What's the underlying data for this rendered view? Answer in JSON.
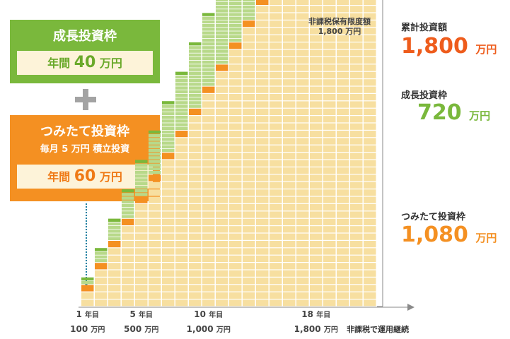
{
  "growth_box": {
    "title": "成長投資枠",
    "annual_prefix": "年間",
    "annual_value": "40",
    "annual_unit": "万円"
  },
  "tsumitate_box": {
    "title": "つみたて投資枠",
    "monthly": "毎月 5 万円 積立投資",
    "annual_prefix": "年間",
    "annual_value": "60",
    "annual_unit": "万円"
  },
  "limit_label": {
    "line1": "非課税保有限度額",
    "line2": "1,800 万円"
  },
  "axis_ticks": [
    {
      "year": "1",
      "year_unit": "年目",
      "amount": "100",
      "amount_unit": "万円",
      "index": 1
    },
    {
      "year": "5",
      "year_unit": "年目",
      "amount": "500",
      "amount_unit": "万円",
      "index": 5
    },
    {
      "year": "10",
      "year_unit": "年目",
      "amount": "1,000",
      "amount_unit": "万円",
      "index": 10
    },
    {
      "year": "18",
      "year_unit": "年目",
      "amount": "1,800",
      "amount_unit": "万円",
      "index": 18
    }
  ],
  "axis_note": "非課税で運用継続",
  "right_labels": {
    "total_label": "累計投資額",
    "total_value": "1,800",
    "total_unit": "万円",
    "growth_label": "成長投資枠",
    "growth_value": "720",
    "growth_unit": "万円",
    "tsumi_label": "つみたて投資枠",
    "tsumi_value": "1,080",
    "tsumi_unit": "万円"
  },
  "colors": {
    "growth_top": "#7ab83c",
    "growth_cell": "#b8d98a",
    "tsumi_top": "#f49022",
    "tsumi_cell": "#f7dfa0",
    "bracket": "#8a8a8a"
  },
  "chart_data": {
    "type": "bar",
    "stacked": true,
    "x": [
      1,
      2,
      3,
      4,
      5,
      6,
      7,
      8,
      9,
      10,
      11,
      12,
      13,
      14,
      15,
      16,
      17,
      18,
      19,
      20,
      21,
      22
    ],
    "series": [
      {
        "name": "つみたて投資枠",
        "values": [
          60,
          120,
          180,
          240,
          300,
          360,
          420,
          480,
          540,
          600,
          660,
          720,
          780,
          840,
          900,
          960,
          1020,
          1080,
          1080,
          1080,
          1080,
          1080
        ]
      },
      {
        "name": "成長投資枠",
        "values": [
          40,
          80,
          120,
          160,
          200,
          240,
          280,
          320,
          360,
          400,
          440,
          480,
          520,
          560,
          600,
          640,
          680,
          720,
          720,
          720,
          720,
          720
        ]
      }
    ],
    "ylim": [
      0,
      1800
    ]
  }
}
